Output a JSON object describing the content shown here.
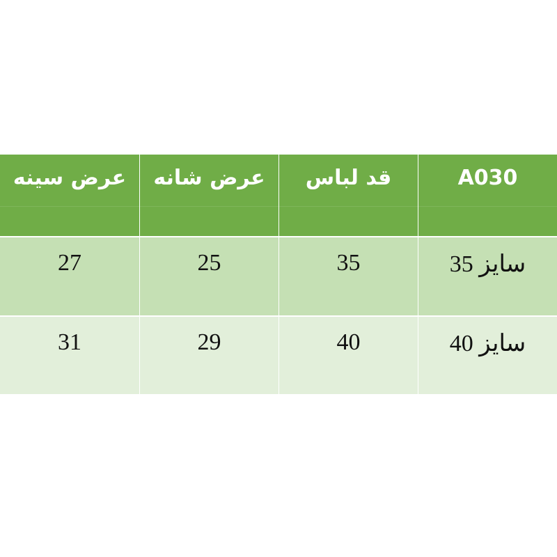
{
  "table": {
    "header": [
      "A030",
      "قد لباس",
      "عرض شانه",
      "عرض سینه"
    ],
    "rows": [
      [
        "سایز 35",
        "35",
        "25",
        "27"
      ],
      [
        "سایز 40",
        "40",
        "29",
        "31"
      ]
    ]
  },
  "colors": {
    "header": "#70ad47",
    "row1": "#c5e0b4",
    "row2": "#e2efda"
  }
}
